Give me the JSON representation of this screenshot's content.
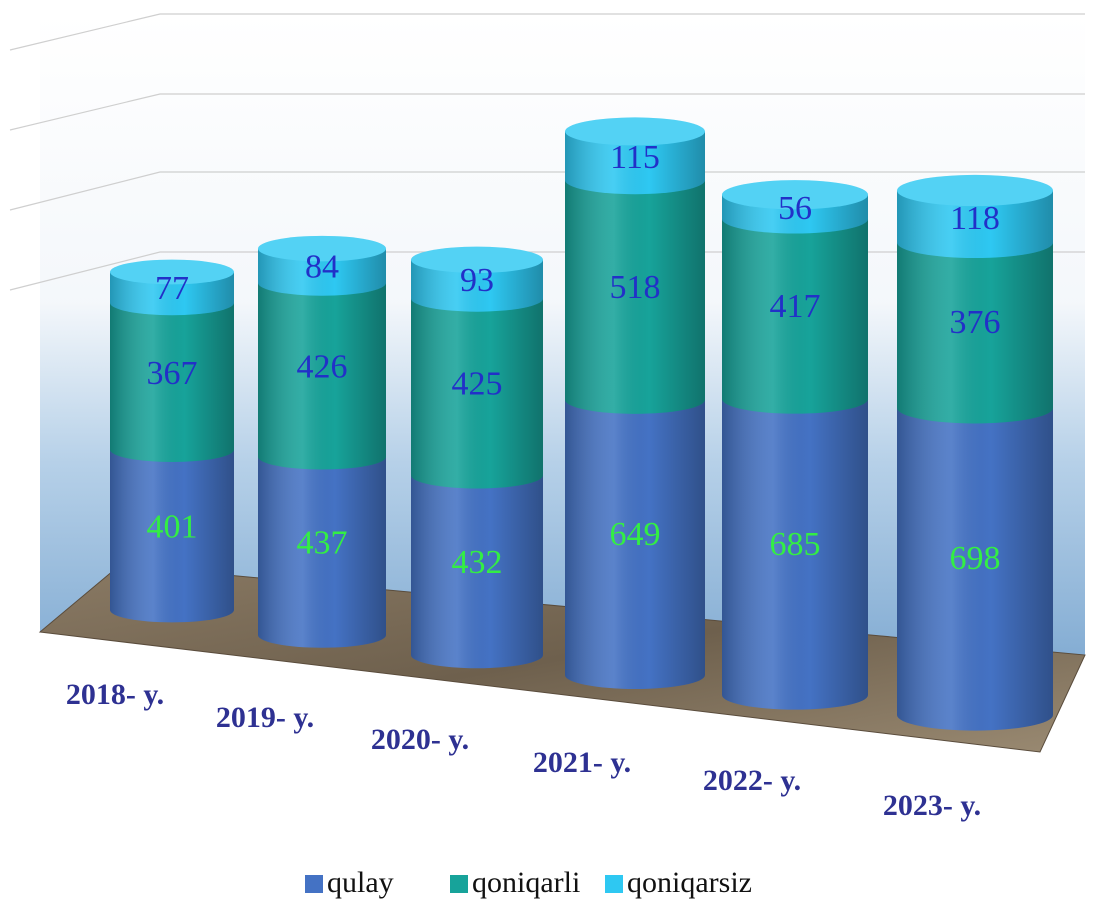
{
  "chart_data": {
    "type": "cylinder-stacked-bar",
    "categories": [
      "2018- y.",
      "2019- y.",
      "2020- y.",
      "2021- y.",
      "2022- y.",
      "2023- y."
    ],
    "series": [
      {
        "name": "qulay",
        "color": "#4472c4",
        "label_color": "#33ee44",
        "values": [
          401,
          437,
          432,
          649,
          685,
          698
        ]
      },
      {
        "name": "qoniqarli",
        "color": "#17a39a",
        "label_color": "#2230c8",
        "values": [
          367,
          426,
          425,
          518,
          417,
          376
        ]
      },
      {
        "name": "qoniqarsiz",
        "color": "#2ec8f2",
        "label_color": "#2230c8",
        "values": [
          77,
          84,
          93,
          115,
          56,
          118
        ]
      }
    ],
    "legend": "bottom",
    "grid": true
  }
}
